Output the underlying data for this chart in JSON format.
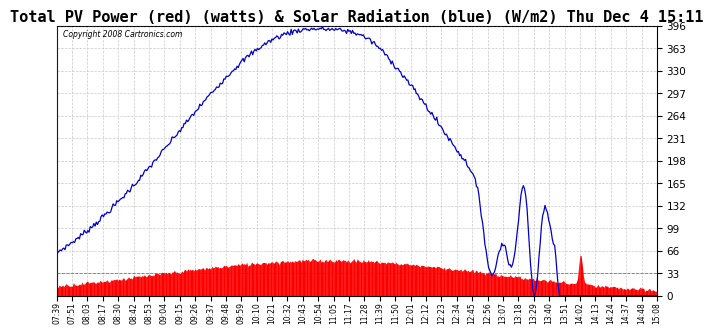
{
  "title": "Total PV Power (red) (watts) & Solar Radiation (blue) (W/m2) Thu Dec 4 15:11",
  "copyright": "Copyright 2008 Cartronics.com",
  "ymin": 0.0,
  "ymax": 396.0,
  "yticks": [
    0.0,
    33.0,
    66.0,
    99.0,
    132.0,
    165.0,
    198.0,
    231.0,
    264.0,
    297.0,
    330.0,
    363.0,
    396.0
  ],
  "background_color": "#ffffff",
  "grid_color": "#c8c8c8",
  "red_color": "#ff0000",
  "blue_color": "#0000cc",
  "title_fontsize": 11,
  "x_labels": [
    "07:39",
    "07:51",
    "08:03",
    "08:17",
    "08:30",
    "08:42",
    "08:53",
    "09:04",
    "09:15",
    "09:26",
    "09:37",
    "09:48",
    "09:59",
    "10:10",
    "10:21",
    "10:32",
    "10:43",
    "10:54",
    "11:05",
    "11:17",
    "11:28",
    "11:39",
    "11:50",
    "12:01",
    "12:12",
    "12:23",
    "12:34",
    "12:45",
    "12:56",
    "13:07",
    "13:18",
    "13:29",
    "13:40",
    "13:51",
    "14:02",
    "14:13",
    "14:24",
    "14:37",
    "14:48",
    "15:08"
  ]
}
